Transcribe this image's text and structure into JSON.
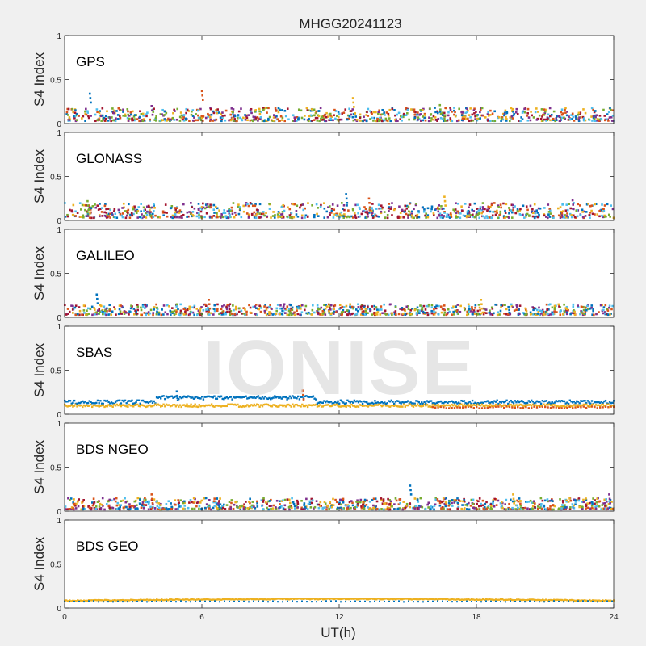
{
  "figure_title": "MHGG20241123",
  "watermark": "IONISE",
  "x_axis": {
    "label": "UT(h)",
    "ticks": [
      0,
      6,
      12,
      18,
      24
    ]
  },
  "y_axis": {
    "label": "S4 Index",
    "ticks": [
      "0",
      "0.5",
      "1"
    ]
  },
  "colors": {
    "background": "#f0f0f0",
    "axes_bg": "#ffffff",
    "series": [
      "#0072bd",
      "#d95319",
      "#edb120",
      "#7e2f8e",
      "#77ac30",
      "#4dbeee",
      "#a2142f"
    ]
  },
  "chart_data": [
    {
      "type": "scatter",
      "title": "GPS",
      "xlim": [
        0,
        24
      ],
      "ylim": [
        0,
        1
      ],
      "approx_range": [
        0.03,
        0.18
      ],
      "series_count": 7,
      "spikes": [
        [
          1.1,
          0.34
        ],
        [
          6.0,
          0.37
        ],
        [
          12.6,
          0.29
        ],
        [
          3.8,
          0.2
        ],
        [
          16.4,
          0.21
        ]
      ]
    },
    {
      "type": "scatter",
      "title": "GLONASS",
      "xlim": [
        0,
        24
      ],
      "ylim": [
        0,
        1
      ],
      "approx_range": [
        0.03,
        0.2
      ],
      "series_count": 7,
      "spikes": [
        [
          12.3,
          0.3
        ],
        [
          13.3,
          0.25
        ],
        [
          16.6,
          0.27
        ],
        [
          22.2,
          0.23
        ],
        [
          1.0,
          0.22
        ]
      ]
    },
    {
      "type": "scatter",
      "title": "GALILEO",
      "xlim": [
        0,
        24
      ],
      "ylim": [
        0,
        1
      ],
      "approx_range": [
        0.03,
        0.15
      ],
      "series_count": 7,
      "spikes": [
        [
          1.4,
          0.26
        ],
        [
          6.3,
          0.2
        ],
        [
          18.2,
          0.2
        ],
        [
          9.6,
          0.15
        ]
      ]
    },
    {
      "type": "scatter",
      "title": "SBAS",
      "xlim": [
        0,
        24
      ],
      "ylim": [
        0,
        1
      ],
      "approx_range": [
        0.07,
        0.25
      ],
      "series_count": 3,
      "spikes": [
        [
          4.9,
          0.26
        ],
        [
          10.4,
          0.27
        ]
      ]
    },
    {
      "type": "scatter",
      "title": "BDS NGEO",
      "xlim": [
        0,
        24
      ],
      "ylim": [
        0,
        1
      ],
      "approx_range": [
        0.02,
        0.15
      ],
      "series_count": 7,
      "spikes": [
        [
          15.1,
          0.29
        ],
        [
          3.8,
          0.19
        ],
        [
          19.6,
          0.19
        ],
        [
          23.8,
          0.19
        ]
      ]
    },
    {
      "type": "scatter",
      "title": "BDS GEO",
      "xlim": [
        0,
        24
      ],
      "ylim": [
        0,
        1
      ],
      "approx_range": [
        0.07,
        0.12
      ],
      "series_count": 3,
      "spikes": []
    }
  ]
}
